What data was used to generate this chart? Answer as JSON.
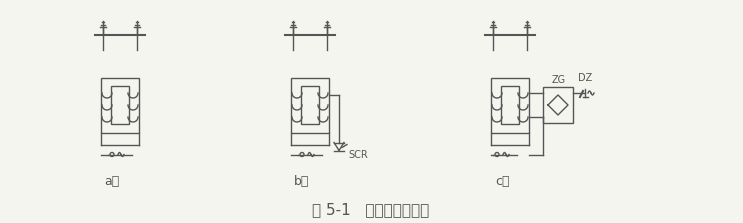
{
  "title": "图 5-1   激振器供电方式",
  "title_fontsize": 11,
  "bg_color": "#f5f5f0",
  "line_color": "#555555",
  "label_a": "a）",
  "label_b": "b）",
  "label_c": "c）",
  "label_SCR": "SCR",
  "label_ZG": "ZG",
  "label_DZ": "DZ",
  "fig_width": 7.43,
  "fig_height": 2.23,
  "dpi": 100
}
